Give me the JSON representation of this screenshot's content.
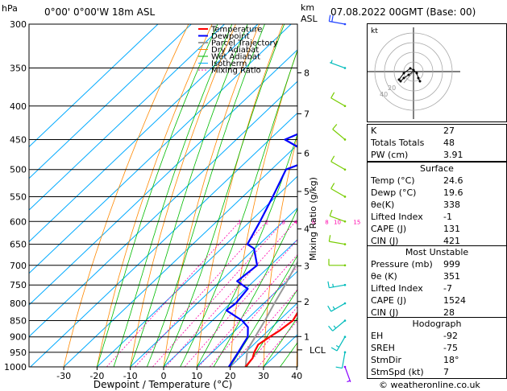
{
  "header": {
    "hpa_unit": "hPa",
    "location": "0°00' 0°00'W 18m ASL",
    "km_unit": "km",
    "asl_unit": "ASL",
    "datetime": "07.08.2022 00GMT (Base: 00)"
  },
  "legend": [
    {
      "label": "Temperature",
      "color": "#ff0000",
      "dash": "",
      "width": 2
    },
    {
      "label": "Dewpoint",
      "color": "#0000ff",
      "dash": "",
      "width": 2
    },
    {
      "label": "Parcel Trajectory",
      "color": "#999999",
      "dash": "",
      "width": 2
    },
    {
      "label": "Dry Adiabat",
      "color": "#ff8800",
      "dash": "",
      "width": 1
    },
    {
      "label": "Wet Adiabat",
      "color": "#00bb00",
      "dash": "",
      "width": 1
    },
    {
      "label": "Isotherm",
      "color": "#00aaff",
      "dash": "",
      "width": 1
    },
    {
      "label": "Mixing Ratio",
      "color": "#ff00aa",
      "dash": "2,2",
      "width": 1
    }
  ],
  "chart_data": {
    "type": "line",
    "xlabel": "Dewpoint / Temperature (°C)",
    "ylabel_right": "Mixing Ratio (g/kg)",
    "xlim": [
      -35,
      40
    ],
    "pressure_levels": [
      300,
      350,
      400,
      450,
      500,
      550,
      600,
      650,
      700,
      750,
      800,
      850,
      900,
      950,
      1000
    ],
    "x_ticks": [
      -30,
      -20,
      -10,
      0,
      10,
      20,
      30,
      40
    ],
    "km_ticks": [
      {
        "label": "8",
        "p": 356
      },
      {
        "label": "7",
        "p": 411
      },
      {
        "label": "6",
        "p": 472
      },
      {
        "label": "5",
        "p": 540
      },
      {
        "label": "4",
        "p": 616
      },
      {
        "label": "3",
        "p": 701
      },
      {
        "label": "2",
        "p": 795
      },
      {
        "label": "1",
        "p": 899
      }
    ],
    "lcl": {
      "label": "LCL",
      "p": 942
    },
    "mixing_ratio_labels": [
      "1",
      "2",
      "3",
      "4",
      "6",
      "8",
      "10",
      "15",
      "20",
      "25"
    ],
    "mixing_ratio_values": [
      1,
      2,
      3,
      4,
      6,
      8,
      10,
      15,
      20,
      25
    ],
    "series": [
      {
        "name": "Temperature",
        "color": "#ff0000",
        "points": [
          [
            1000,
            24.6
          ],
          [
            970,
            24.0
          ],
          [
            950,
            22.6
          ],
          [
            925,
            21.4
          ],
          [
            900,
            22.4
          ],
          [
            880,
            23.4
          ],
          [
            850,
            24.2
          ],
          [
            820,
            22.8
          ],
          [
            800,
            21.6
          ],
          [
            770,
            19.4
          ],
          [
            750,
            18.8
          ],
          [
            700,
            15.2
          ],
          [
            650,
            10.8
          ],
          [
            600,
            6.0
          ],
          [
            550,
            0.8
          ],
          [
            500,
            -4.4
          ],
          [
            450,
            -10.0
          ],
          [
            400,
            -16.2
          ],
          [
            370,
            -21.0
          ],
          [
            350,
            -25.4
          ],
          [
            320,
            -29.6
          ],
          [
            300,
            -32.8
          ]
        ]
      },
      {
        "name": "Dewpoint",
        "color": "#0000ff",
        "points": [
          [
            1000,
            19.6
          ],
          [
            950,
            17.8
          ],
          [
            925,
            16.8
          ],
          [
            900,
            15.8
          ],
          [
            870,
            12.8
          ],
          [
            850,
            9.0
          ],
          [
            820,
            1.0
          ],
          [
            800,
            1.6
          ],
          [
            760,
            0.6
          ],
          [
            740,
            -5.0
          ],
          [
            700,
            -4.0
          ],
          [
            660,
            -10.2
          ],
          [
            650,
            -13.6
          ],
          [
            600,
            -17.0
          ],
          [
            550,
            -21.0
          ],
          [
            500,
            -25.6
          ],
          [
            480,
            -20.0
          ],
          [
            450,
            -35.4
          ],
          [
            420,
            -28.0
          ],
          [
            400,
            -33.0
          ],
          [
            350,
            -41.0
          ],
          [
            300,
            -47.0
          ]
        ]
      },
      {
        "name": "Parcel Trajectory",
        "color": "#999999",
        "points": [
          [
            1000,
            24.6
          ],
          [
            942,
            19.8
          ],
          [
            900,
            18.0
          ],
          [
            850,
            15.8
          ],
          [
            800,
            13.2
          ],
          [
            750,
            10.6
          ],
          [
            700,
            7.6
          ],
          [
            650,
            4.4
          ],
          [
            600,
            0.8
          ],
          [
            550,
            -3.2
          ],
          [
            500,
            -7.6
          ],
          [
            450,
            -12.6
          ],
          [
            400,
            -18.4
          ],
          [
            350,
            -25.0
          ],
          [
            300,
            -33.0
          ]
        ]
      }
    ],
    "wind_barbs": [
      {
        "p": 1000,
        "dir": 160,
        "kt": 5,
        "color": "#8800ff"
      },
      {
        "p": 950,
        "dir": 190,
        "kt": 10,
        "color": "#00bbbb"
      },
      {
        "p": 900,
        "dir": 210,
        "kt": 15,
        "color": "#00bbbb"
      },
      {
        "p": 850,
        "dir": 230,
        "kt": 15,
        "color": "#00bbbb"
      },
      {
        "p": 800,
        "dir": 240,
        "kt": 15,
        "color": "#00bbbb"
      },
      {
        "p": 750,
        "dir": 260,
        "kt": 15,
        "color": "#00bbbb"
      },
      {
        "p": 700,
        "dir": 270,
        "kt": 10,
        "color": "#77cc00"
      },
      {
        "p": 650,
        "dir": 280,
        "kt": 10,
        "color": "#77cc00"
      },
      {
        "p": 600,
        "dir": 290,
        "kt": 10,
        "color": "#77cc00"
      },
      {
        "p": 550,
        "dir": 300,
        "kt": 10,
        "color": "#77cc00"
      },
      {
        "p": 500,
        "dir": 300,
        "kt": 10,
        "color": "#77cc00"
      },
      {
        "p": 450,
        "dir": 310,
        "kt": 10,
        "color": "#77cc00"
      },
      {
        "p": 400,
        "dir": 300,
        "kt": 10,
        "color": "#77cc00"
      },
      {
        "p": 350,
        "dir": 290,
        "kt": 5,
        "color": "#00bbbb"
      },
      {
        "p": 300,
        "dir": 280,
        "kt": 20,
        "color": "#2244ff"
      }
    ]
  },
  "hodograph": {
    "label": "kt",
    "ring_labels": [
      "20",
      "40"
    ],
    "points": [
      [
        0,
        0
      ],
      [
        -3,
        -2
      ],
      [
        -6,
        -4
      ],
      [
        -8,
        -6
      ],
      [
        -9,
        -5
      ],
      [
        -6,
        -1
      ],
      [
        -2,
        2
      ],
      [
        0,
        1
      ],
      [
        2,
        -1
      ],
      [
        3,
        -4
      ],
      [
        4,
        -6
      ]
    ]
  },
  "indices": [
    {
      "key": "K",
      "value": "27"
    },
    {
      "key": "Totals Totals",
      "value": "48"
    },
    {
      "key": "PW (cm)",
      "value": "3.91"
    }
  ],
  "surface": {
    "title": "Surface",
    "rows": [
      {
        "key": "Temp (°C)",
        "value": "24.6"
      },
      {
        "key": "Dewp (°C)",
        "value": "19.6"
      },
      {
        "key": "θe(K)",
        "value": "338"
      },
      {
        "key": "Lifted Index",
        "value": "-1"
      },
      {
        "key": "CAPE (J)",
        "value": "131"
      },
      {
        "key": "CIN (J)",
        "value": "421"
      }
    ]
  },
  "most_unstable": {
    "title": "Most Unstable",
    "rows": [
      {
        "key": "Pressure (mb)",
        "value": "999"
      },
      {
        "key": "θe (K)",
        "value": "351"
      },
      {
        "key": "Lifted Index",
        "value": "-7"
      },
      {
        "key": "CAPE (J)",
        "value": "1524"
      },
      {
        "key": "CIN (J)",
        "value": "28"
      }
    ]
  },
  "hodograph_table": {
    "title": "Hodograph",
    "rows": [
      {
        "key": "EH",
        "value": "-92"
      },
      {
        "key": "SREH",
        "value": "-75"
      },
      {
        "key": "StmDir",
        "value": "18°"
      },
      {
        "key": "StmSpd (kt)",
        "value": "7"
      }
    ]
  },
  "footer": {
    "copyright": "© weatheronline.co.uk"
  }
}
